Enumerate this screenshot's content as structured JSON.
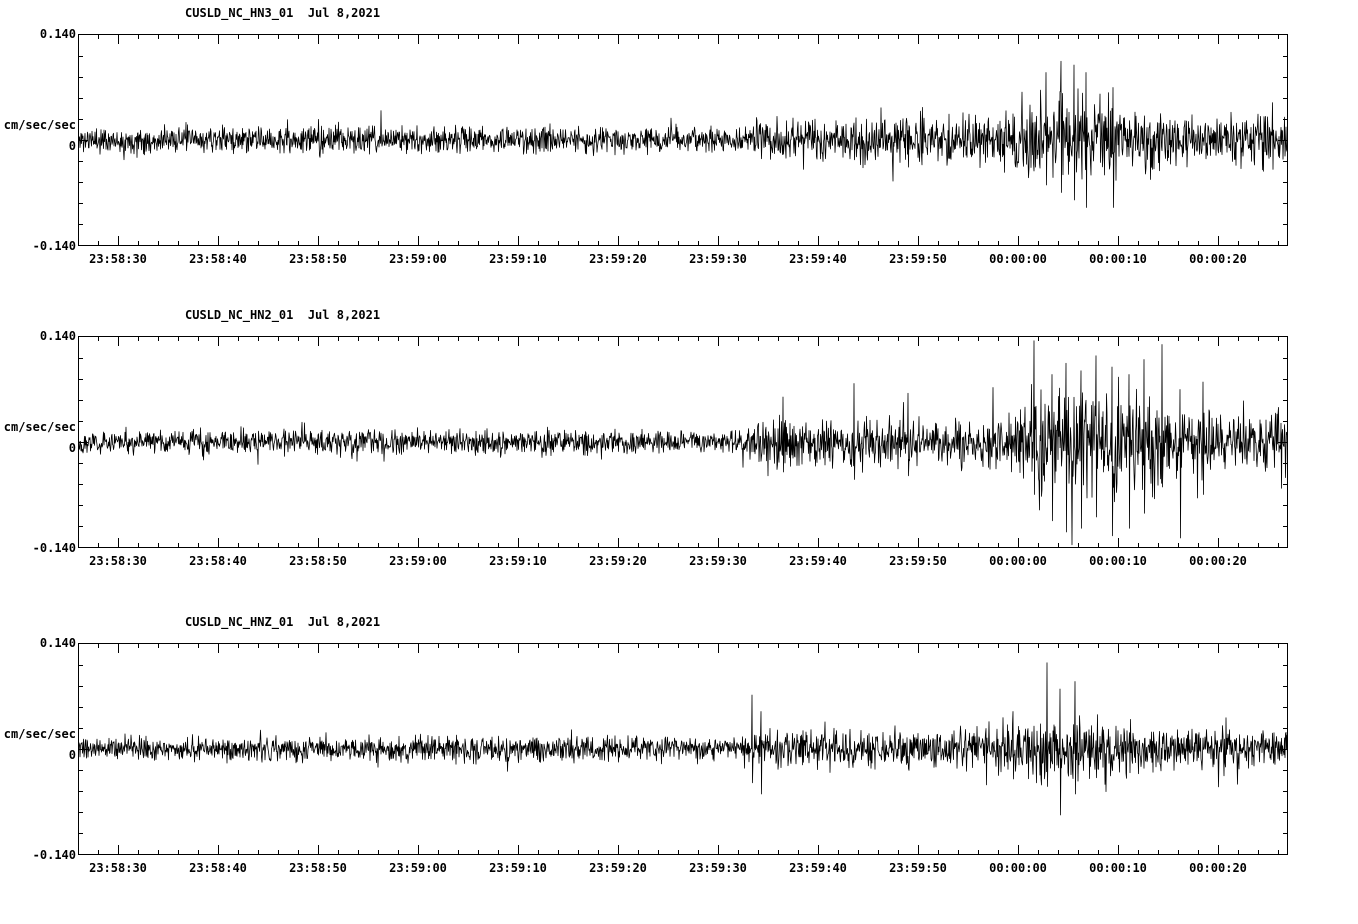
{
  "page": {
    "background_color": "#ffffff",
    "trace_color": "#000000",
    "axis_color": "#000000"
  },
  "chart_data": [
    {
      "type": "line",
      "kind": "seismogram",
      "title": "CUSLD_NC_HN3_01  Jul 8,2021",
      "station": "CUSLD_NC_HN3_01",
      "date": "Jul 8,2021",
      "ylabel": "cm/sec/sec",
      "y_top_label": "0.140",
      "y_zero_label": "0",
      "y_bottom_label": "-0.140",
      "ylim": [
        -0.14,
        0.14
      ],
      "grid": false,
      "legend": false,
      "x_tick_labels": [
        "23:58:30",
        "23:58:40",
        "23:58:50",
        "23:59:00",
        "23:59:10",
        "23:59:20",
        "23:59:30",
        "23:59:40",
        "23:59:50",
        "00:00:00",
        "00:00:10",
        "00:00:20"
      ],
      "x_start_offset_s": 4,
      "x_tick_interval_s": 10,
      "x_minor_tick_s": 2,
      "duration_s": 121,
      "seed": 11,
      "envelope": [
        [
          0,
          0.013
        ],
        [
          25,
          0.014
        ],
        [
          33,
          0.016
        ],
        [
          37,
          0.014
        ],
        [
          60,
          0.013
        ],
        [
          67,
          0.013
        ],
        [
          68,
          0.022
        ],
        [
          75,
          0.022
        ],
        [
          85,
          0.025
        ],
        [
          92,
          0.028
        ],
        [
          95,
          0.04
        ],
        [
          98,
          0.055
        ],
        [
          101,
          0.05
        ],
        [
          104,
          0.04
        ],
        [
          107,
          0.032
        ],
        [
          110,
          0.028
        ],
        [
          121,
          0.028
        ]
      ],
      "spikes": [
        {
          "t": 96.8,
          "up": 0.09,
          "down": -0.06
        },
        {
          "t": 98.3,
          "up": 0.105,
          "down": -0.07
        },
        {
          "t": 99.6,
          "up": 0.1,
          "down": -0.08
        },
        {
          "t": 100.8,
          "up": 0.09,
          "down": -0.09
        },
        {
          "t": 103.5,
          "up": 0.07,
          "down": -0.09
        }
      ]
    },
    {
      "type": "line",
      "kind": "seismogram",
      "title": "CUSLD_NC_HN2_01  Jul 8,2021",
      "station": "CUSLD_NC_HN2_01",
      "date": "Jul 8,2021",
      "ylabel": "cm/sec/sec",
      "y_top_label": "0.140",
      "y_zero_label": "0",
      "y_bottom_label": "-0.140",
      "ylim": [
        -0.14,
        0.14
      ],
      "grid": false,
      "legend": false,
      "x_tick_labels": [
        "23:58:30",
        "23:58:40",
        "23:58:50",
        "23:59:00",
        "23:59:10",
        "23:59:20",
        "23:59:30",
        "23:59:40",
        "23:59:50",
        "00:00:00",
        "00:00:10",
        "00:00:20"
      ],
      "x_start_offset_s": 4,
      "x_tick_interval_s": 10,
      "x_minor_tick_s": 2,
      "duration_s": 121,
      "seed": 22,
      "envelope": [
        [
          0,
          0.012
        ],
        [
          40,
          0.013
        ],
        [
          66,
          0.012
        ],
        [
          68,
          0.028
        ],
        [
          74,
          0.028
        ],
        [
          80,
          0.026
        ],
        [
          86,
          0.024
        ],
        [
          91,
          0.028
        ],
        [
          94,
          0.035
        ],
        [
          97,
          0.05
        ],
        [
          100,
          0.055
        ],
        [
          104,
          0.055
        ],
        [
          108,
          0.05
        ],
        [
          112,
          0.035
        ],
        [
          116,
          0.03
        ],
        [
          121,
          0.03
        ]
      ],
      "spikes": [
        {
          "t": 70.5,
          "up": 0.06,
          "down": -0.04
        },
        {
          "t": 77.6,
          "up": 0.078,
          "down": -0.05
        },
        {
          "t": 83,
          "up": 0.065,
          "down": -0.045
        },
        {
          "t": 95.6,
          "up": 0.135,
          "down": -0.07
        },
        {
          "t": 97.4,
          "up": 0.09,
          "down": -0.105
        },
        {
          "t": 98.8,
          "up": 0.105,
          "down": -0.12
        },
        {
          "t": 100.3,
          "up": 0.095,
          "down": -0.115
        },
        {
          "t": 101.8,
          "up": 0.115,
          "down": -0.1
        },
        {
          "t": 103.4,
          "up": 0.1,
          "down": -0.125
        },
        {
          "t": 105.1,
          "up": 0.09,
          "down": -0.115
        },
        {
          "t": 106.6,
          "up": 0.11,
          "down": -0.095
        },
        {
          "t": 108.4,
          "up": 0.13,
          "down": -0.06
        },
        {
          "t": 110.2,
          "up": 0.07,
          "down": -0.128
        },
        {
          "t": 112.5,
          "up": 0.08,
          "down": -0.07
        }
      ]
    },
    {
      "type": "line",
      "kind": "seismogram",
      "title": "CUSLD_NC_HNZ_01  Jul 8,2021",
      "station": "CUSLD_NC_HNZ_01",
      "date": "Jul 8,2021",
      "ylabel": "cm/sec/sec",
      "y_top_label": "0.140",
      "y_zero_label": "0",
      "y_bottom_label": "-0.140",
      "ylim": [
        -0.14,
        0.14
      ],
      "grid": false,
      "legend": false,
      "x_tick_labels": [
        "23:58:30",
        "23:58:40",
        "23:58:50",
        "23:59:00",
        "23:59:10",
        "23:59:20",
        "23:59:30",
        "23:59:40",
        "23:59:50",
        "00:00:00",
        "00:00:10",
        "00:00:20"
      ],
      "x_start_offset_s": 4,
      "x_tick_interval_s": 10,
      "x_minor_tick_s": 2,
      "duration_s": 121,
      "seed": 33,
      "envelope": [
        [
          0,
          0.012
        ],
        [
          40,
          0.014
        ],
        [
          66,
          0.013
        ],
        [
          68,
          0.02
        ],
        [
          80,
          0.02
        ],
        [
          90,
          0.022
        ],
        [
          94,
          0.028
        ],
        [
          97,
          0.035
        ],
        [
          100,
          0.032
        ],
        [
          104,
          0.026
        ],
        [
          108,
          0.022
        ],
        [
          114,
          0.02
        ],
        [
          121,
          0.02
        ]
      ],
      "spikes": [
        {
          "t": 67.4,
          "up": 0.072,
          "down": -0.045
        },
        {
          "t": 68.3,
          "up": 0.05,
          "down": -0.06
        },
        {
          "t": 93.5,
          "up": 0.05,
          "down": -0.04
        },
        {
          "t": 96.9,
          "up": 0.115,
          "down": -0.05
        },
        {
          "t": 98.2,
          "up": 0.08,
          "down": -0.088
        },
        {
          "t": 99.7,
          "up": 0.09,
          "down": -0.06
        }
      ]
    }
  ]
}
